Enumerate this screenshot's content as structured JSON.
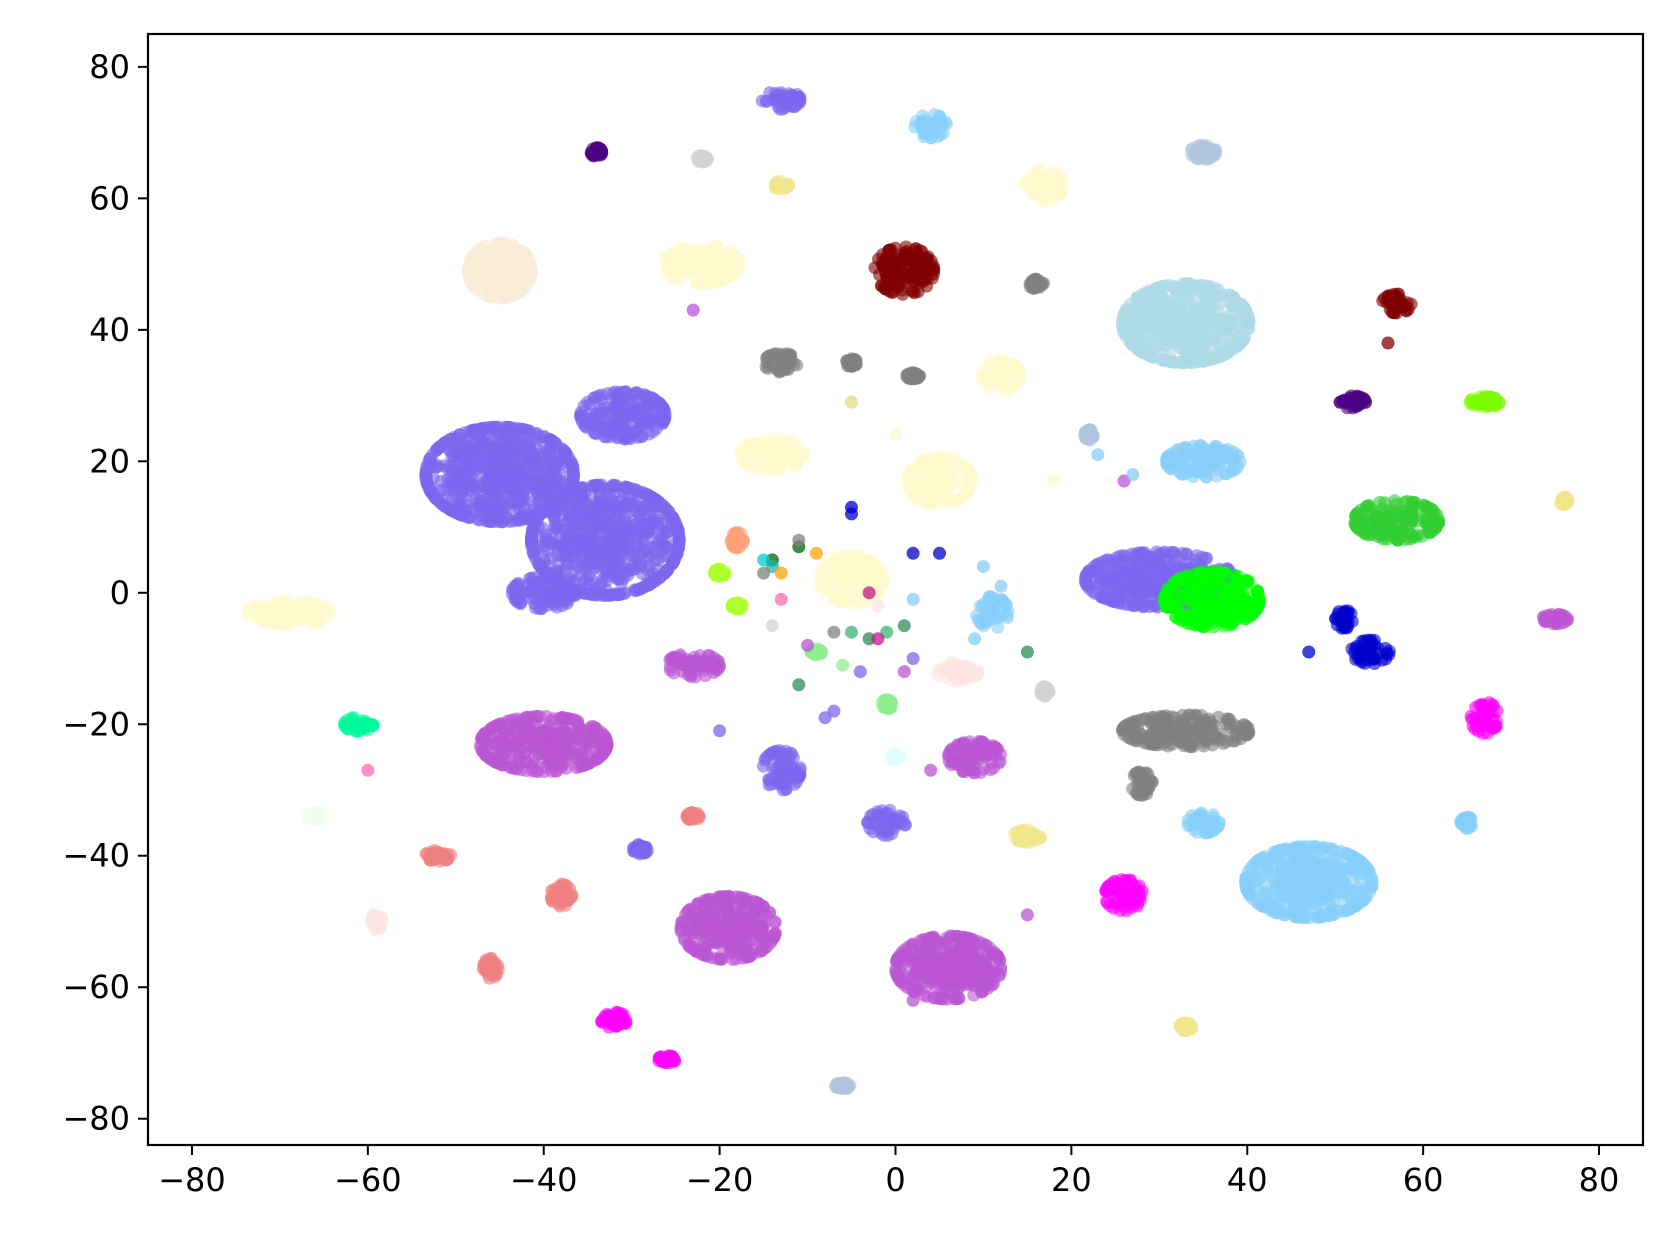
{
  "chart_data": {
    "type": "scatter",
    "title": "",
    "xlabel": "",
    "ylabel": "",
    "xlim": [
      -85,
      85
    ],
    "ylim": [
      -84,
      85
    ],
    "grid": false,
    "legend": "none",
    "x_ticks": [
      {
        "value": -80,
        "label": "−80"
      },
      {
        "value": -60,
        "label": "−60"
      },
      {
        "value": -40,
        "label": "−40"
      },
      {
        "value": -20,
        "label": "−20"
      },
      {
        "value": 0,
        "label": "0"
      },
      {
        "value": 20,
        "label": "20"
      },
      {
        "value": 40,
        "label": "40"
      },
      {
        "value": 60,
        "label": "60"
      },
      {
        "value": 80,
        "label": "80"
      }
    ],
    "y_ticks": [
      {
        "value": 80,
        "label": "80"
      },
      {
        "value": 60,
        "label": "60"
      },
      {
        "value": 40,
        "label": "40"
      },
      {
        "value": 20,
        "label": "20"
      },
      {
        "value": 0,
        "label": "0"
      },
      {
        "value": -20,
        "label": "−20"
      },
      {
        "value": -40,
        "label": "−40"
      },
      {
        "value": -60,
        "label": "−60"
      },
      {
        "value": -80,
        "label": "−80"
      }
    ],
    "clusters": [
      {
        "color": "#7B68EE",
        "x": -45,
        "y": 18,
        "sx": 7,
        "sy": 6
      },
      {
        "color": "#7B68EE",
        "x": -33,
        "y": 8,
        "sx": 7,
        "sy": 7
      },
      {
        "color": "#7B68EE",
        "x": -31,
        "y": 27,
        "sx": 4,
        "sy": 3
      },
      {
        "color": "#7B68EE",
        "x": -40,
        "y": 0,
        "sx": 3,
        "sy": 2
      },
      {
        "color": "#7B68EE",
        "x": 30,
        "y": 2,
        "sx": 7,
        "sy": 3.5
      },
      {
        "color": "#7B68EE",
        "x": -13,
        "y": -27,
        "sx": 1.8,
        "sy": 2.5
      },
      {
        "color": "#7B68EE",
        "x": -1,
        "y": -35,
        "sx": 1.8,
        "sy": 1.6
      },
      {
        "color": "#7B68EE",
        "x": -13,
        "y": 75,
        "sx": 1.8,
        "sy": 1.2
      },
      {
        "color": "#7B68EE",
        "x": -29,
        "y": -39,
        "sx": 0.7,
        "sy": 0.6
      },
      {
        "color": "#00FF00",
        "x": 36,
        "y": -1,
        "sx": 4.5,
        "sy": 3.5
      },
      {
        "color": "#BA55D3",
        "x": -40,
        "y": -23,
        "sx": 6,
        "sy": 3.5
      },
      {
        "color": "#BA55D3",
        "x": -19,
        "y": -51,
        "sx": 4.5,
        "sy": 4
      },
      {
        "color": "#BA55D3",
        "x": 6,
        "y": -57,
        "sx": 5,
        "sy": 4
      },
      {
        "color": "#BA55D3",
        "x": -23,
        "y": -11,
        "sx": 2.5,
        "sy": 1.5
      },
      {
        "color": "#BA55D3",
        "x": 9,
        "y": -25,
        "sx": 2.5,
        "sy": 2
      },
      {
        "color": "#BA55D3",
        "x": 75,
        "y": -4,
        "sx": 1.2,
        "sy": 0.6
      },
      {
        "color": "#ADD8E6",
        "x": 33,
        "y": 41,
        "sx": 6,
        "sy": 5
      },
      {
        "color": "#87CEFA",
        "x": 47,
        "y": -44,
        "sx": 6,
        "sy": 4.5
      },
      {
        "color": "#87CEFA",
        "x": 35,
        "y": 20,
        "sx": 3.5,
        "sy": 2
      },
      {
        "color": "#87CEFA",
        "x": 4,
        "y": 71,
        "sx": 1.5,
        "sy": 1.5
      },
      {
        "color": "#87CEFA",
        "x": 11,
        "y": -3,
        "sx": 1.5,
        "sy": 2
      },
      {
        "color": "#87CEFA",
        "x": 35,
        "y": -35,
        "sx": 1.5,
        "sy": 1.3
      },
      {
        "color": "#87CEFA",
        "x": 65,
        "y": -35,
        "sx": 0.6,
        "sy": 0.7
      },
      {
        "color": "#800000",
        "x": 1,
        "y": 49,
        "sx": 2.8,
        "sy": 3
      },
      {
        "color": "#800000",
        "x": 57,
        "y": 44,
        "sx": 1.4,
        "sy": 1.2
      },
      {
        "color": "#808080",
        "x": 33,
        "y": -21,
        "sx": 6,
        "sy": 2
      },
      {
        "color": "#808080",
        "x": -13,
        "y": 35,
        "sx": 1.6,
        "sy": 1.2
      },
      {
        "color": "#808080",
        "x": 16,
        "y": 47,
        "sx": 0.7,
        "sy": 0.6
      },
      {
        "color": "#808080",
        "x": 2,
        "y": 33,
        "sx": 0.6,
        "sy": 0.4
      },
      {
        "color": "#808080",
        "x": -5,
        "y": 35,
        "sx": 0.5,
        "sy": 0.5
      },
      {
        "color": "#808080",
        "x": 28,
        "y": -29,
        "sx": 1,
        "sy": 1.5
      },
      {
        "color": "#FFFACD",
        "x": -22,
        "y": 50,
        "sx": 3.5,
        "sy": 2.5
      },
      {
        "color": "#FFFACD",
        "x": -14,
        "y": 21,
        "sx": 3,
        "sy": 2
      },
      {
        "color": "#FFFACD",
        "x": 5,
        "y": 17,
        "sx": 3,
        "sy": 3
      },
      {
        "color": "#FFFACD",
        "x": 17,
        "y": 62,
        "sx": 1.8,
        "sy": 2
      },
      {
        "color": "#FFFACD",
        "x": 12,
        "y": 33,
        "sx": 1.8,
        "sy": 2
      },
      {
        "color": "#FFFACD",
        "x": -69,
        "y": -3,
        "sx": 4,
        "sy": 1.5
      },
      {
        "color": "#FFFACD",
        "x": -5,
        "y": 2,
        "sx": 3,
        "sy": 3
      },
      {
        "color": "#FAEBD7",
        "x": -45,
        "y": 49,
        "sx": 3,
        "sy": 3.5
      },
      {
        "color": "#32CD32",
        "x": 57,
        "y": 11,
        "sx": 4,
        "sy": 2.5
      },
      {
        "color": "#0000CD",
        "x": 54,
        "y": -9,
        "sx": 1.8,
        "sy": 1.5
      },
      {
        "color": "#0000CD",
        "x": 51,
        "y": -4,
        "sx": 0.8,
        "sy": 1.2
      },
      {
        "color": "#FF00FF",
        "x": 67,
        "y": -19,
        "sx": 1.3,
        "sy": 2
      },
      {
        "color": "#FF00FF",
        "x": 26,
        "y": -46,
        "sx": 1.8,
        "sy": 2
      },
      {
        "color": "#FF00FF",
        "x": -32,
        "y": -65,
        "sx": 1.2,
        "sy": 1
      },
      {
        "color": "#FF00FF",
        "x": -26,
        "y": -71,
        "sx": 0.8,
        "sy": 0.5
      },
      {
        "color": "#4B0082",
        "x": 52,
        "y": 29,
        "sx": 1.2,
        "sy": 0.8
      },
      {
        "color": "#4B0082",
        "x": -34,
        "y": 67,
        "sx": 0.5,
        "sy": 0.6
      },
      {
        "color": "#7CFC00",
        "x": 67,
        "y": 29,
        "sx": 1.4,
        "sy": 0.7
      },
      {
        "color": "#00FA9A",
        "x": -61,
        "y": -20,
        "sx": 1.4,
        "sy": 0.9
      },
      {
        "color": "#F08080",
        "x": -38,
        "y": -46,
        "sx": 1,
        "sy": 1.4
      },
      {
        "color": "#F08080",
        "x": -46,
        "y": -57,
        "sx": 0.7,
        "sy": 1.4
      },
      {
        "color": "#F08080",
        "x": -52,
        "y": -40,
        "sx": 1.2,
        "sy": 0.7
      },
      {
        "color": "#F08080",
        "x": -23,
        "y": -34,
        "sx": 0.6,
        "sy": 0.5
      },
      {
        "color": "#F0E68C",
        "x": 15,
        "y": -37,
        "sx": 1.3,
        "sy": 0.8
      },
      {
        "color": "#F0E68C",
        "x": -13,
        "y": 62,
        "sx": 0.7,
        "sy": 0.5
      },
      {
        "color": "#F0E68C",
        "x": 33,
        "y": -66,
        "sx": 0.6,
        "sy": 0.5
      },
      {
        "color": "#F0E68C",
        "x": 76,
        "y": 14,
        "sx": 0.4,
        "sy": 0.5
      },
      {
        "color": "#B0C4DE",
        "x": 35,
        "y": 67,
        "sx": 1.2,
        "sy": 0.9
      },
      {
        "color": "#B0C4DE",
        "x": -6,
        "y": -75,
        "sx": 0.7,
        "sy": 0.4
      },
      {
        "color": "#B0C4DE",
        "x": 22,
        "y": 24,
        "sx": 0.4,
        "sy": 0.7
      },
      {
        "color": "#D3D3D3",
        "x": -22,
        "y": 66,
        "sx": 0.5,
        "sy": 0.4
      },
      {
        "color": "#D3D3D3",
        "x": 17,
        "y": -15,
        "sx": 0.4,
        "sy": 0.6
      },
      {
        "color": "#FFE4E1",
        "x": -59,
        "y": -50,
        "sx": 0.5,
        "sy": 1.1
      },
      {
        "color": "#FFE4E1",
        "x": 7,
        "y": -12,
        "sx": 2,
        "sy": 1.2
      },
      {
        "color": "#F0FFF0",
        "x": -66,
        "y": -34,
        "sx": 0.7,
        "sy": 0.6
      },
      {
        "color": "#90EE90",
        "x": -1,
        "y": -17,
        "sx": 0.5,
        "sy": 0.6
      },
      {
        "color": "#90EE90",
        "x": -9,
        "y": -9,
        "sx": 0.5,
        "sy": 0.4
      },
      {
        "color": "#ADFF2F",
        "x": -20,
        "y": 3,
        "sx": 0.5,
        "sy": 0.5
      },
      {
        "color": "#ADFF2F",
        "x": -18,
        "y": -2,
        "sx": 0.5,
        "sy": 0.4
      },
      {
        "color": "#FFA07A",
        "x": -18,
        "y": 8,
        "sx": 0.6,
        "sy": 1
      },
      {
        "color": "#E0FFFF",
        "x": 0,
        "y": -25,
        "sx": 0.4,
        "sy": 0.4
      }
    ],
    "singles": [
      {
        "color": "#0000CD",
        "x": -5,
        "y": 13
      },
      {
        "color": "#0000CD",
        "x": 2,
        "y": 6
      },
      {
        "color": "#0000CD",
        "x": 5,
        "y": 6
      },
      {
        "color": "#0000CD",
        "x": -5,
        "y": 12
      },
      {
        "color": "#0000CD",
        "x": 47,
        "y": -9
      },
      {
        "color": "#006400",
        "x": -14,
        "y": 5
      },
      {
        "color": "#006400",
        "x": -11,
        "y": 7
      },
      {
        "color": "#2E8B57",
        "x": -11,
        "y": -14
      },
      {
        "color": "#2E8B57",
        "x": 1,
        "y": -5
      },
      {
        "color": "#2E8B57",
        "x": -3,
        "y": -7
      },
      {
        "color": "#2E8B57",
        "x": 15,
        "y": -9
      },
      {
        "color": "#3CB371",
        "x": -5,
        "y": -6
      },
      {
        "color": "#3CB371",
        "x": -1,
        "y": -6
      },
      {
        "color": "#C71585",
        "x": -3,
        "y": 0
      },
      {
        "color": "#C71585",
        "x": -2,
        "y": -7
      },
      {
        "color": "#FF69B4",
        "x": -60,
        "y": -27
      },
      {
        "color": "#FF69B4",
        "x": -13,
        "y": -1
      },
      {
        "color": "#00CED1",
        "x": -15,
        "y": 5
      },
      {
        "color": "#20B2AA",
        "x": -14,
        "y": 4
      },
      {
        "color": "#FFA500",
        "x": -9,
        "y": 6
      },
      {
        "color": "#FFA500",
        "x": -13,
        "y": 3
      },
      {
        "color": "#800000",
        "x": 56,
        "y": 38
      },
      {
        "color": "#808080",
        "x": -11,
        "y": 8
      },
      {
        "color": "#808080",
        "x": -7,
        "y": -6
      },
      {
        "color": "#808080",
        "x": -15,
        "y": 3
      },
      {
        "color": "#BA55D3",
        "x": 26,
        "y": 17
      },
      {
        "color": "#BA55D3",
        "x": -23,
        "y": 43
      },
      {
        "color": "#BA55D3",
        "x": 4,
        "y": -27
      },
      {
        "color": "#BA55D3",
        "x": 2,
        "y": -62
      },
      {
        "color": "#BA55D3",
        "x": 15,
        "y": -49
      },
      {
        "color": "#BA55D3",
        "x": -10,
        "y": -8
      },
      {
        "color": "#BA55D3",
        "x": 1,
        "y": -12
      },
      {
        "color": "#7B68EE",
        "x": -20,
        "y": -21
      },
      {
        "color": "#7B68EE",
        "x": -8,
        "y": -19
      },
      {
        "color": "#7B68EE",
        "x": -7,
        "y": -18
      },
      {
        "color": "#7B68EE",
        "x": -4,
        "y": -12
      },
      {
        "color": "#7B68EE",
        "x": 2,
        "y": -10
      },
      {
        "color": "#87CEFA",
        "x": 10,
        "y": 4
      },
      {
        "color": "#87CEFA",
        "x": 12,
        "y": 1
      },
      {
        "color": "#87CEFA",
        "x": 2,
        "y": -1
      },
      {
        "color": "#87CEFA",
        "x": 9,
        "y": -7
      },
      {
        "color": "#87CEFA",
        "x": 23,
        "y": 21
      },
      {
        "color": "#87CEFA",
        "x": 27,
        "y": 18
      },
      {
        "color": "#D3D3D3",
        "x": -14,
        "y": -5
      },
      {
        "color": "#D3D3D3",
        "x": -5,
        "y": 29
      },
      {
        "color": "#FFFACD",
        "x": 0,
        "y": 24
      },
      {
        "color": "#FFFACD",
        "x": 18,
        "y": 17
      },
      {
        "color": "#F0E68C",
        "x": -5,
        "y": 29
      },
      {
        "color": "#90EE90",
        "x": -6,
        "y": -11
      },
      {
        "color": "#FFE4E1",
        "x": -2,
        "y": -2
      }
    ]
  }
}
